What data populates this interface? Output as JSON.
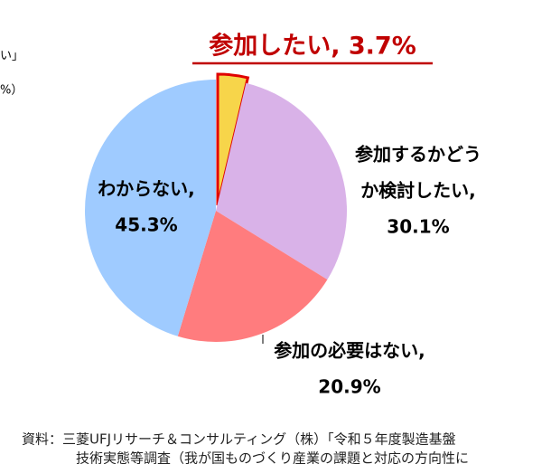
{
  "chart_data": {
    "type": "pie",
    "title": "参加したい, 3.7%",
    "categories": [
      [
        "参加したい,"
      ],
      [
        "参加するかどう",
        "か検討したい,"
      ],
      [
        "参加の必要はない,"
      ],
      [
        "わからない,"
      ]
    ],
    "values": [
      3.7,
      30.1,
      20.9,
      45.3
    ],
    "value_labels": [
      "3.7%",
      "30.1%",
      "20.9%",
      "45.3%"
    ],
    "colors": [
      "#f7d54a",
      "#d9b2e8",
      "#ff7c7e",
      "#9fcbff"
    ],
    "highlight_color": "#e00000"
  },
  "cropped_left_text": [
    "い」",
    "%）"
  ],
  "source": [
    "資料：三菱UFJリサーチ＆コンサルティング（株）「令和５年度製造基盤",
    "技術実態等調査（我が国ものづくり産業の課題と対応の方向性に"
  ]
}
